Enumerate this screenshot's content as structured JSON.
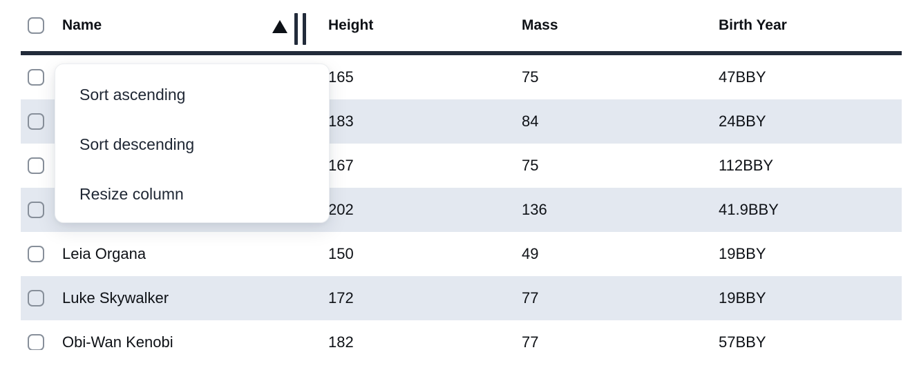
{
  "table": {
    "columns": [
      {
        "key": "name",
        "label": "Name"
      },
      {
        "key": "height",
        "label": "Height"
      },
      {
        "key": "mass",
        "label": "Mass"
      },
      {
        "key": "birth_year",
        "label": "Birth Year"
      }
    ],
    "sort": {
      "column": "Name",
      "direction": "ascending",
      "indicator_icon": "triangle-up"
    },
    "rows": [
      {
        "name": "",
        "height": "165",
        "mass": "75",
        "birth_year": "47BBY"
      },
      {
        "name": "",
        "height": "183",
        "mass": "84",
        "birth_year": "24BBY"
      },
      {
        "name": "",
        "height": "167",
        "mass": "75",
        "birth_year": "112BBY"
      },
      {
        "name": "",
        "height": "202",
        "mass": "136",
        "birth_year": "41.9BBY"
      },
      {
        "name": "Leia Organa",
        "height": "150",
        "mass": "49",
        "birth_year": "19BBY"
      },
      {
        "name": "Luke Skywalker",
        "height": "172",
        "mass": "77",
        "birth_year": "19BBY"
      },
      {
        "name": "Obi-Wan Kenobi",
        "height": "182",
        "mass": "77",
        "birth_year": "57BBY"
      }
    ]
  },
  "context_menu": {
    "items": [
      "Sort ascending",
      "Sort descending",
      "Resize column"
    ]
  },
  "colors": {
    "header_border": "#222b3a",
    "stripe": "#e3e8f0",
    "text": "#0e1116",
    "menu_text": "#1e2633",
    "checkbox_border": "#878f9a"
  }
}
